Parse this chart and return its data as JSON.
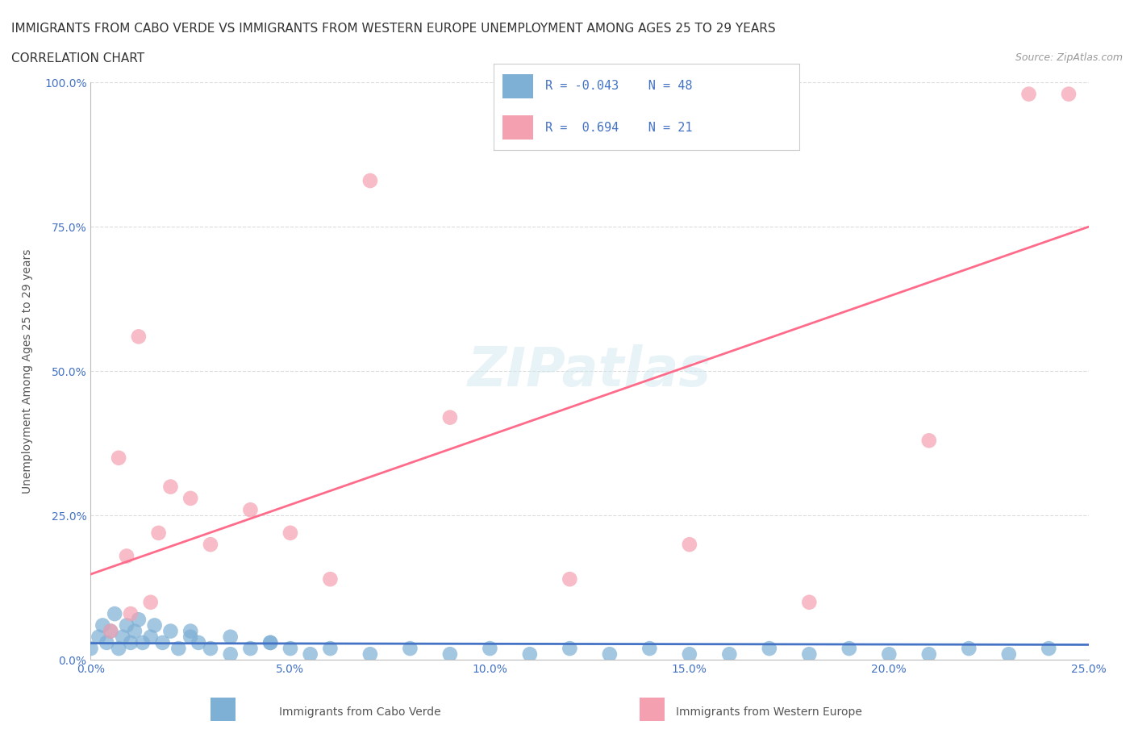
{
  "title_line1": "IMMIGRANTS FROM CABO VERDE VS IMMIGRANTS FROM WESTERN EUROPE UNEMPLOYMENT AMONG AGES 25 TO 29 YEARS",
  "title_line2": "CORRELATION CHART",
  "source_text": "Source: ZipAtlas.com",
  "xlabel": "",
  "ylabel": "Unemployment Among Ages 25 to 29 years",
  "xlim": [
    0.0,
    0.25
  ],
  "ylim": [
    0.0,
    1.0
  ],
  "xticks": [
    0.0,
    0.05,
    0.1,
    0.15,
    0.2,
    0.25
  ],
  "xtick_labels": [
    "0.0%",
    "5.0%",
    "10.0%",
    "15.0%",
    "20.0%",
    "25.0%"
  ],
  "yticks": [
    0.0,
    0.25,
    0.5,
    0.75,
    1.0
  ],
  "ytick_labels": [
    "0.0%",
    "25.0%",
    "50.0%",
    "75.0%",
    "100.0%"
  ],
  "legend_r1": "R = -0.043",
  "legend_n1": "N = 48",
  "legend_r2": "R =  0.694",
  "legend_n2": "N = 21",
  "color_blue": "#7EB0D5",
  "color_pink": "#F4A0B0",
  "color_blue_line": "#4472C4",
  "color_pink_line": "#FF6B8A",
  "color_axis_label": "#4472C4",
  "watermark": "ZIPatlas",
  "cabo_verde_x": [
    0.0,
    0.002,
    0.003,
    0.004,
    0.005,
    0.006,
    0.007,
    0.008,
    0.009,
    0.01,
    0.011,
    0.012,
    0.013,
    0.015,
    0.016,
    0.018,
    0.02,
    0.022,
    0.025,
    0.027,
    0.03,
    0.035,
    0.04,
    0.045,
    0.05,
    0.055,
    0.06,
    0.07,
    0.08,
    0.09,
    0.1,
    0.11,
    0.12,
    0.13,
    0.14,
    0.15,
    0.16,
    0.17,
    0.18,
    0.19,
    0.2,
    0.21,
    0.22,
    0.23,
    0.24,
    0.025,
    0.035,
    0.045
  ],
  "cabo_verde_y": [
    0.02,
    0.04,
    0.06,
    0.03,
    0.05,
    0.08,
    0.02,
    0.04,
    0.06,
    0.03,
    0.05,
    0.07,
    0.03,
    0.04,
    0.06,
    0.03,
    0.05,
    0.02,
    0.04,
    0.03,
    0.02,
    0.01,
    0.02,
    0.03,
    0.02,
    0.01,
    0.02,
    0.01,
    0.02,
    0.01,
    0.02,
    0.01,
    0.02,
    0.01,
    0.02,
    0.01,
    0.01,
    0.02,
    0.01,
    0.02,
    0.01,
    0.01,
    0.02,
    0.01,
    0.02,
    0.05,
    0.04,
    0.03
  ],
  "western_europe_x": [
    0.005,
    0.007,
    0.009,
    0.01,
    0.012,
    0.015,
    0.017,
    0.02,
    0.025,
    0.03,
    0.04,
    0.05,
    0.06,
    0.07,
    0.09,
    0.12,
    0.15,
    0.18,
    0.21,
    0.235,
    0.245
  ],
  "western_europe_y": [
    0.05,
    0.35,
    0.18,
    0.08,
    0.56,
    0.1,
    0.22,
    0.3,
    0.28,
    0.2,
    0.26,
    0.22,
    0.14,
    0.83,
    0.42,
    0.14,
    0.2,
    0.1,
    0.38,
    0.98,
    0.98
  ],
  "grid_color": "#CCCCCC",
  "background_color": "#FFFFFF"
}
